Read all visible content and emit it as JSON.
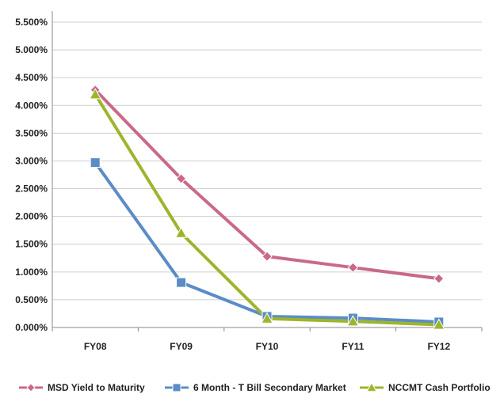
{
  "chart_data": {
    "type": "line",
    "title": "",
    "xlabel": "",
    "ylabel": "",
    "categories": [
      "FY08",
      "FY09",
      "FY10",
      "FY11",
      "FY12"
    ],
    "ylim": [
      0,
      0.055
    ],
    "yticks": [
      0,
      0.005,
      0.01,
      0.015,
      0.02,
      0.025,
      0.03,
      0.035,
      0.04,
      0.045,
      0.05,
      0.055
    ],
    "ytick_labels": [
      "0.000%",
      "0.500%",
      "1.000%",
      "1.500%",
      "2.000%",
      "2.500%",
      "3.000%",
      "3.500%",
      "4.000%",
      "4.500%",
      "5.000%",
      "5.500%"
    ],
    "grid": "horizontal",
    "legend_position": "bottom",
    "series": [
      {
        "name": "MSD Yield to Maturity",
        "values": [
          0.0428,
          0.0268,
          0.0128,
          0.0108,
          0.0088
        ],
        "color": "#c9698a",
        "marker": "diamond"
      },
      {
        "name": "6 Month - T Bill Secondary Market",
        "values": [
          0.0297,
          0.0081,
          0.002,
          0.0017,
          0.001
        ],
        "color": "#5b8cc6",
        "marker": "square"
      },
      {
        "name": "NCCMT Cash Portfolio",
        "values": [
          0.042,
          0.017,
          0.0016,
          0.0011,
          0.0005
        ],
        "color": "#9cb52c",
        "marker": "triangle"
      }
    ]
  }
}
